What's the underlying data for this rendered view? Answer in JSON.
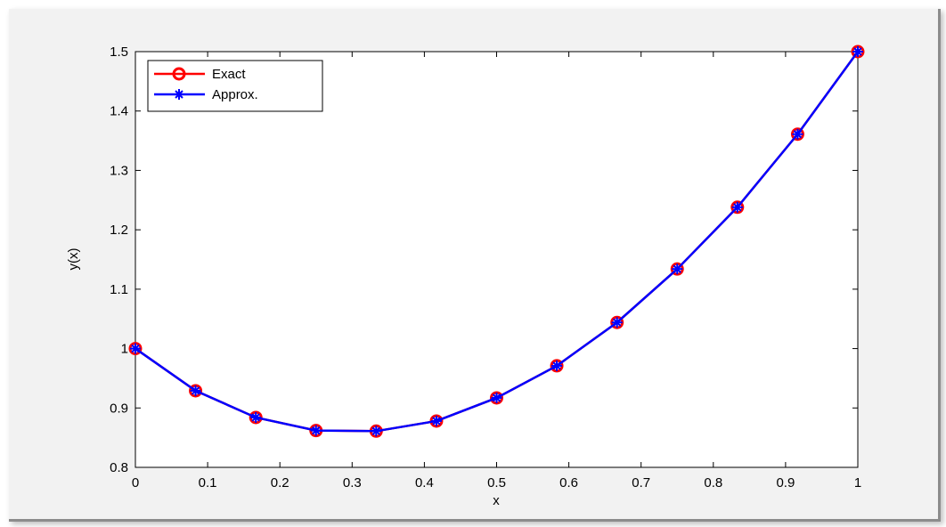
{
  "chart_data": {
    "type": "line",
    "xlabel": "x",
    "ylabel": "y(x)",
    "xlim": [
      0,
      1
    ],
    "ylim": [
      0.8,
      1.5
    ],
    "x_ticks": [
      0,
      0.1,
      0.2,
      0.3,
      0.4,
      0.5,
      0.6,
      0.7,
      0.8,
      0.9,
      1
    ],
    "x_tick_labels": [
      "0",
      "0.1",
      "0.2",
      "0.3",
      "0.4",
      "0.5",
      "0.6",
      "0.7",
      "0.8",
      "0.9",
      "1"
    ],
    "y_ticks": [
      0.8,
      0.9,
      1.0,
      1.1,
      1.2,
      1.3,
      1.4,
      1.5
    ],
    "y_tick_labels": [
      "0.8",
      "0.9",
      "1",
      "1.1",
      "1.2",
      "1.3",
      "1.4",
      "1.5"
    ],
    "grid": false,
    "legend_position": "top-left",
    "x": [
      0,
      0.0833,
      0.1667,
      0.25,
      0.3333,
      0.4167,
      0.5,
      0.5833,
      0.6667,
      0.75,
      0.8333,
      0.9167,
      1
    ],
    "series": [
      {
        "name": "Exact",
        "color": "#ff0000",
        "marker": "circle",
        "values": [
          1.0,
          0.929,
          0.884,
          0.862,
          0.861,
          0.878,
          0.917,
          0.971,
          1.044,
          1.134,
          1.238,
          1.361,
          1.5
        ]
      },
      {
        "name": "Approx.",
        "color": "#0000ff",
        "marker": "star",
        "values": [
          1.0,
          0.929,
          0.884,
          0.862,
          0.861,
          0.878,
          0.917,
          0.971,
          1.044,
          1.134,
          1.238,
          1.361,
          1.5
        ]
      }
    ]
  }
}
